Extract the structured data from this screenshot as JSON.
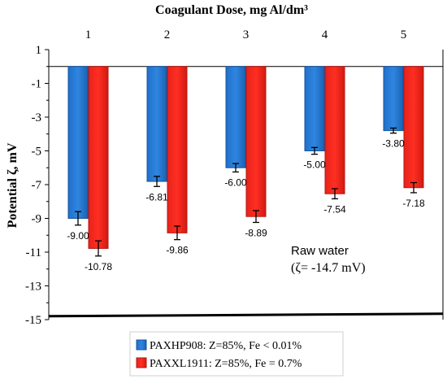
{
  "chart_data": {
    "type": "bar",
    "title": "Coagulant Dose, mg Al/dm³",
    "ylabel": "Potential ζ, mV",
    "categories": [
      "1",
      "2",
      "3",
      "4",
      "5"
    ],
    "ylim": [
      -15,
      1
    ],
    "yticks": [
      "1",
      "-1",
      "-3",
      "-5",
      "-7",
      "-9",
      "-11",
      "-13",
      "-15"
    ],
    "grid": false,
    "legend_position": "bottom",
    "series": [
      {
        "name": "PAXHP908: Z=85%, Fe < 0.01%",
        "color": "#1F6FC9",
        "values": [
          -9.0,
          -6.81,
          -6.0,
          -5.0,
          -3.8
        ],
        "value_labels": [
          "-9.00",
          "-6.81",
          "-6.00",
          "-5.00",
          "-3.80"
        ],
        "errors": [
          0.4,
          0.3,
          0.25,
          0.2,
          0.15
        ]
      },
      {
        "name": "PAXXL1911: Z=85%, Fe = 0.7%",
        "color": "#E8231B",
        "values": [
          -10.78,
          -9.86,
          -8.89,
          -7.54,
          -7.18
        ],
        "value_labels": [
          "-10.78",
          "-9.86",
          "-8.89",
          "-7.54",
          "-7.18"
        ],
        "errors": [
          0.45,
          0.4,
          0.35,
          0.3,
          0.3
        ]
      }
    ],
    "reference_line": {
      "value": -14.7
    },
    "annotation": {
      "line1": "Raw water",
      "line2": "(ζ= -14.7 mV)"
    }
  }
}
